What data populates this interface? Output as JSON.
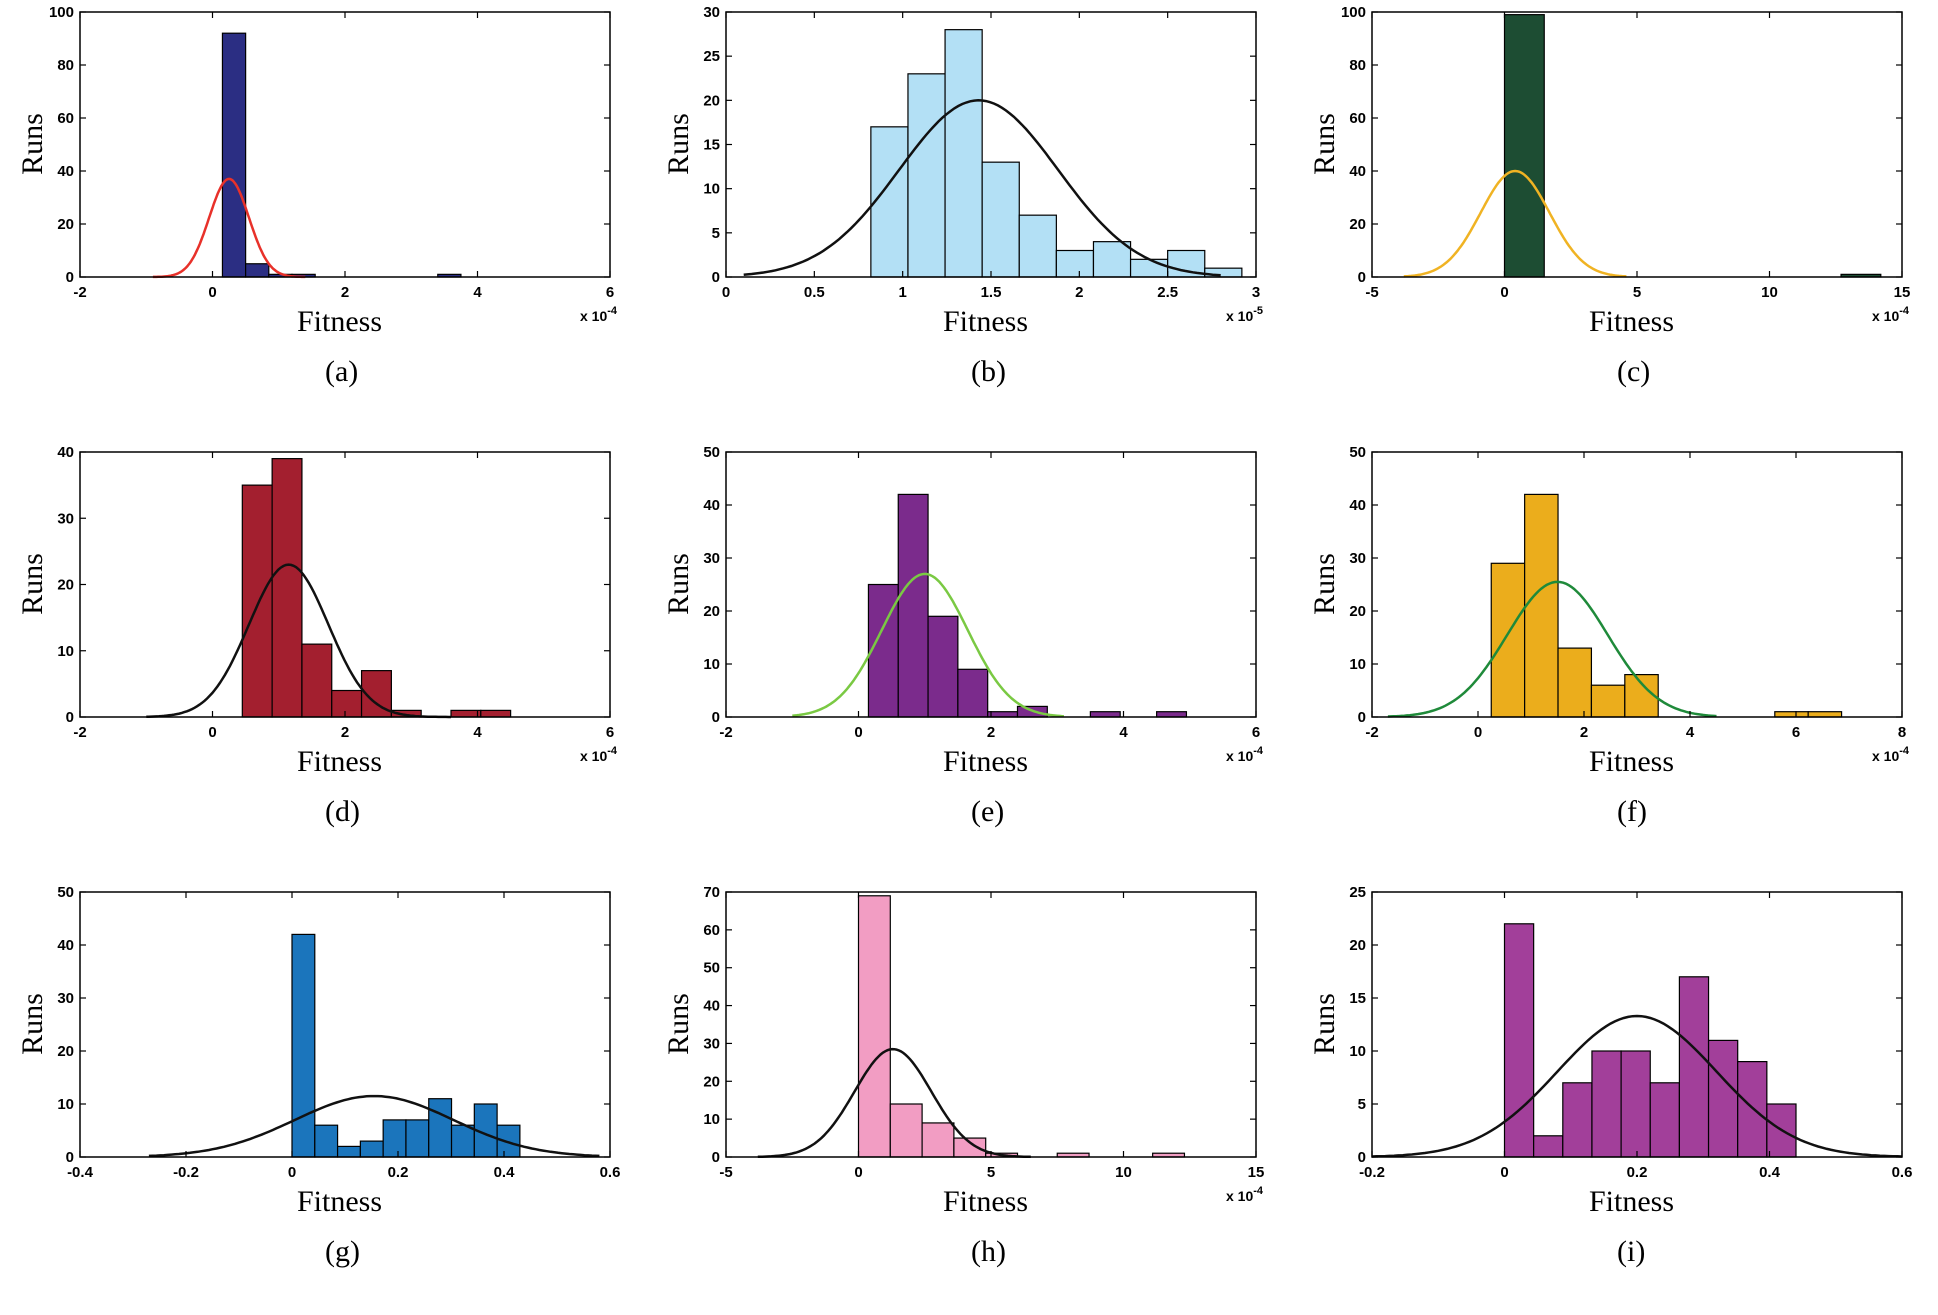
{
  "y_axis_label": "Runs",
  "x_axis_label": "Fitness",
  "chart_data": [
    {
      "caption": "(a)",
      "type": "bar",
      "ylabel": "Runs",
      "xlabel": "Fitness",
      "multiplier": "x 10",
      "multiplier_exp": "-4",
      "xlim": [
        -2,
        6
      ],
      "ylim": [
        0,
        100
      ],
      "xticks": [
        -2,
        0,
        2,
        4,
        6
      ],
      "xtick_labels": [
        "-2",
        "0",
        "2",
        "4",
        "6"
      ],
      "yticks": [
        0,
        20,
        40,
        60,
        80,
        100
      ],
      "ytick_labels": [
        "0",
        "20",
        "40",
        "60",
        "80",
        "100"
      ],
      "bar_color": "#2b2e83",
      "curve_color": "#e8312a",
      "bins": [
        [
          0.15,
          0.5,
          92
        ],
        [
          0.5,
          0.85,
          5
        ],
        [
          0.85,
          1.2,
          1
        ],
        [
          1.2,
          1.55,
          1
        ],
        [
          3.4,
          3.75,
          1
        ]
      ],
      "fit": {
        "mu": 0.25,
        "sigma": 0.3,
        "peak": 37,
        "range": [
          -0.9,
          1.4
        ]
      }
    },
    {
      "caption": "(b)",
      "type": "bar",
      "ylabel": "Runs",
      "xlabel": "Fitness",
      "multiplier": "x 10",
      "multiplier_exp": "-5",
      "xlim": [
        0,
        3
      ],
      "ylim": [
        0,
        30
      ],
      "xticks": [
        0,
        0.5,
        1,
        1.5,
        2,
        2.5,
        3
      ],
      "xtick_labels": [
        "0",
        "0.5",
        "1",
        "1.5",
        "2",
        "2.5",
        "3"
      ],
      "yticks": [
        0,
        5,
        10,
        15,
        20,
        25,
        30
      ],
      "ytick_labels": [
        "0",
        "5",
        "10",
        "15",
        "20",
        "25",
        "30"
      ],
      "bar_color": "#b3e0f5",
      "curve_color": "#111111",
      "bins": [
        [
          0.82,
          1.03,
          17
        ],
        [
          1.03,
          1.24,
          23
        ],
        [
          1.24,
          1.45,
          28
        ],
        [
          1.45,
          1.66,
          13
        ],
        [
          1.66,
          1.87,
          7
        ],
        [
          1.87,
          2.08,
          3
        ],
        [
          2.08,
          2.29,
          4
        ],
        [
          2.29,
          2.5,
          2
        ],
        [
          2.5,
          2.71,
          3
        ],
        [
          2.71,
          2.92,
          1
        ]
      ],
      "fit": {
        "mu": 1.43,
        "sigma": 0.45,
        "peak": 20,
        "range": [
          0.1,
          2.8
        ]
      }
    },
    {
      "caption": "(c)",
      "type": "bar",
      "ylabel": "Runs",
      "xlabel": "Fitness",
      "multiplier": "x 10",
      "multiplier_exp": "-4",
      "xlim": [
        -5,
        15
      ],
      "ylim": [
        0,
        100
      ],
      "xticks": [
        -5,
        0,
        5,
        10,
        15
      ],
      "xtick_labels": [
        "-5",
        "0",
        "5",
        "10",
        "15"
      ],
      "yticks": [
        0,
        20,
        40,
        60,
        80,
        100
      ],
      "ytick_labels": [
        "0",
        "20",
        "40",
        "60",
        "80",
        "100"
      ],
      "bar_color": "#1d4d33",
      "curve_color": "#f0b323",
      "bins": [
        [
          0,
          1.5,
          99
        ],
        [
          12.7,
          14.2,
          1
        ]
      ],
      "fit": {
        "mu": 0.4,
        "sigma": 1.3,
        "peak": 40,
        "range": [
          -3.8,
          4.6
        ]
      }
    },
    {
      "caption": "(d)",
      "type": "bar",
      "ylabel": "Runs",
      "xlabel": "Fitness",
      "multiplier": "x 10",
      "multiplier_exp": "-4",
      "xlim": [
        -2,
        6
      ],
      "ylim": [
        0,
        40
      ],
      "xticks": [
        -2,
        0,
        2,
        4,
        6
      ],
      "xtick_labels": [
        "-2",
        "0",
        "2",
        "4",
        "6"
      ],
      "yticks": [
        0,
        10,
        20,
        30,
        40
      ],
      "ytick_labels": [
        "0",
        "10",
        "20",
        "30",
        "40"
      ],
      "bar_color": "#a31f2f",
      "curve_color": "#111111",
      "bins": [
        [
          0.45,
          0.9,
          35
        ],
        [
          0.9,
          1.35,
          39
        ],
        [
          1.35,
          1.8,
          11
        ],
        [
          1.8,
          2.25,
          4
        ],
        [
          2.25,
          2.7,
          7
        ],
        [
          2.7,
          3.15,
          1
        ],
        [
          3.15,
          3.6,
          0
        ],
        [
          3.6,
          4.05,
          1
        ],
        [
          4.05,
          4.5,
          1
        ]
      ],
      "fit": {
        "mu": 1.15,
        "sigma": 0.6,
        "peak": 23,
        "range": [
          -1,
          3.6
        ]
      }
    },
    {
      "caption": "(e)",
      "type": "bar",
      "ylabel": "Runs",
      "xlabel": "Fitness",
      "multiplier": "x 10",
      "multiplier_exp": "-4",
      "xlim": [
        -2,
        6
      ],
      "ylim": [
        0,
        50
      ],
      "xticks": [
        -2,
        0,
        2,
        4,
        6
      ],
      "xtick_labels": [
        "-2",
        "0",
        "2",
        "4",
        "6"
      ],
      "yticks": [
        0,
        10,
        20,
        30,
        40,
        50
      ],
      "ytick_labels": [
        "0",
        "10",
        "20",
        "30",
        "40",
        "50"
      ],
      "bar_color": "#7b2b8c",
      "curve_color": "#7ac943",
      "bins": [
        [
          0.15,
          0.6,
          25
        ],
        [
          0.6,
          1.05,
          42
        ],
        [
          1.05,
          1.5,
          19
        ],
        [
          1.5,
          1.95,
          9
        ],
        [
          1.95,
          2.4,
          1
        ],
        [
          2.4,
          2.85,
          2
        ],
        [
          3.5,
          3.95,
          1
        ],
        [
          4.5,
          4.95,
          1
        ]
      ],
      "fit": {
        "mu": 1.0,
        "sigma": 0.65,
        "peak": 27,
        "range": [
          -1,
          3.1
        ]
      }
    },
    {
      "caption": "(f)",
      "type": "bar",
      "ylabel": "Runs",
      "xlabel": "Fitness",
      "multiplier": "x 10",
      "multiplier_exp": "-4",
      "xlim": [
        -2,
        8
      ],
      "ylim": [
        0,
        50
      ],
      "xticks": [
        -2,
        0,
        2,
        4,
        6,
        8
      ],
      "xtick_labels": [
        "-2",
        "0",
        "2",
        "4",
        "6",
        "8"
      ],
      "yticks": [
        0,
        10,
        20,
        30,
        40,
        50
      ],
      "ytick_labels": [
        "0",
        "10",
        "20",
        "30",
        "40",
        "50"
      ],
      "bar_color": "#ebad1c",
      "curve_color": "#1f8a3a",
      "bins": [
        [
          0.25,
          0.88,
          29
        ],
        [
          0.88,
          1.51,
          42
        ],
        [
          1.51,
          2.14,
          13
        ],
        [
          2.14,
          2.77,
          6
        ],
        [
          2.77,
          3.4,
          8
        ],
        [
          5.6,
          6.23,
          1
        ],
        [
          6.23,
          6.86,
          1
        ]
      ],
      "fit": {
        "mu": 1.5,
        "sigma": 0.95,
        "peak": 25.5,
        "range": [
          -1.7,
          4.5
        ]
      }
    },
    {
      "caption": "(g)",
      "type": "bar",
      "ylabel": "Runs",
      "xlabel": "Fitness",
      "multiplier": "",
      "multiplier_exp": "",
      "xlim": [
        -0.4,
        0.6
      ],
      "ylim": [
        0,
        50
      ],
      "xticks": [
        -0.4,
        -0.2,
        0,
        0.2,
        0.4,
        0.6
      ],
      "xtick_labels": [
        "-0.4",
        "-0.2",
        "0",
        "0.2",
        "0.4",
        "0.6"
      ],
      "yticks": [
        0,
        10,
        20,
        30,
        40,
        50
      ],
      "ytick_labels": [
        "0",
        "10",
        "20",
        "30",
        "40",
        "50"
      ],
      "bar_color": "#1b75bc",
      "curve_color": "#111111",
      "bins": [
        [
          0,
          0.043,
          42
        ],
        [
          0.043,
          0.086,
          6
        ],
        [
          0.086,
          0.129,
          2
        ],
        [
          0.129,
          0.172,
          3
        ],
        [
          0.172,
          0.215,
          7
        ],
        [
          0.215,
          0.258,
          7
        ],
        [
          0.258,
          0.301,
          11
        ],
        [
          0.301,
          0.344,
          6
        ],
        [
          0.344,
          0.387,
          10
        ],
        [
          0.387,
          0.43,
          6
        ]
      ],
      "fit": {
        "mu": 0.155,
        "sigma": 0.15,
        "peak": 11.5,
        "range": [
          -0.27,
          0.58
        ]
      }
    },
    {
      "caption": "(h)",
      "type": "bar",
      "ylabel": "Runs",
      "xlabel": "Fitness",
      "multiplier": "x 10",
      "multiplier_exp": "-4",
      "xlim": [
        -5,
        15
      ],
      "ylim": [
        0,
        70
      ],
      "xticks": [
        -5,
        0,
        5,
        10,
        15
      ],
      "xtick_labels": [
        "-5",
        "0",
        "5",
        "10",
        "15"
      ],
      "yticks": [
        0,
        10,
        20,
        30,
        40,
        50,
        60,
        70
      ],
      "ytick_labels": [
        "0",
        "10",
        "20",
        "30",
        "40",
        "50",
        "60",
        "70"
      ],
      "bar_color": "#f29dc3",
      "curve_color": "#111111",
      "bins": [
        [
          0,
          1.2,
          69
        ],
        [
          1.2,
          2.4,
          14
        ],
        [
          2.4,
          3.6,
          9
        ],
        [
          3.6,
          4.8,
          5
        ],
        [
          4.8,
          6.0,
          1
        ],
        [
          7.5,
          8.7,
          1
        ],
        [
          11.1,
          12.3,
          1
        ]
      ],
      "fit": {
        "mu": 1.3,
        "sigma": 1.45,
        "peak": 28.5,
        "range": [
          -3.8,
          6.5
        ]
      }
    },
    {
      "caption": "(i)",
      "type": "bar",
      "ylabel": "Runs",
      "xlabel": "Fitness",
      "multiplier": "",
      "multiplier_exp": "",
      "xlim": [
        -0.2,
        0.6
      ],
      "ylim": [
        0,
        25
      ],
      "xticks": [
        -0.2,
        0,
        0.2,
        0.4,
        0.6
      ],
      "xtick_labels": [
        "-0.2",
        "0",
        "0.2",
        "0.4",
        "0.6"
      ],
      "yticks": [
        0,
        5,
        10,
        15,
        20,
        25
      ],
      "ytick_labels": [
        "0",
        "5",
        "10",
        "15",
        "20",
        "25"
      ],
      "bar_color": "#a23f9a",
      "curve_color": "#111111",
      "bins": [
        [
          0,
          0.044,
          22
        ],
        [
          0.044,
          0.088,
          2
        ],
        [
          0.088,
          0.132,
          7
        ],
        [
          0.132,
          0.176,
          10
        ],
        [
          0.176,
          0.22,
          10
        ],
        [
          0.22,
          0.264,
          7
        ],
        [
          0.264,
          0.308,
          17
        ],
        [
          0.308,
          0.352,
          11
        ],
        [
          0.352,
          0.396,
          9
        ],
        [
          0.396,
          0.44,
          5
        ]
      ],
      "fit": {
        "mu": 0.2,
        "sigma": 0.12,
        "peak": 13.3,
        "range": [
          -0.2,
          0.6
        ]
      }
    }
  ]
}
